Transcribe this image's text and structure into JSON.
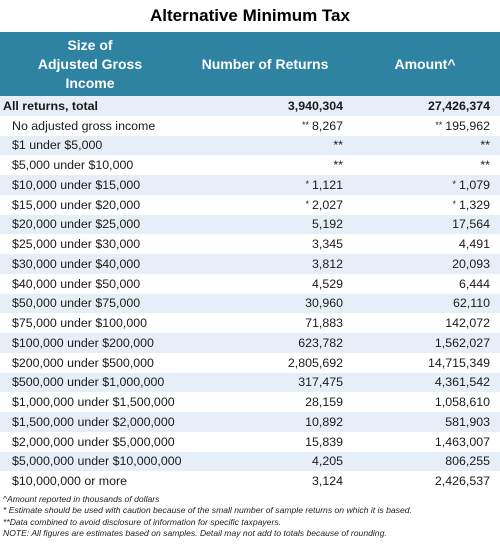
{
  "title": "Alternative Minimum Tax",
  "headers": {
    "size_line1": "Size of",
    "size_line2": "Adjusted Gross",
    "size_line3": "Income",
    "returns": "Number of Returns",
    "amount": "Amount^"
  },
  "rows": [
    {
      "label": "All returns, total",
      "returns_flag": "",
      "returns": "3,940,304",
      "amount_flag": "",
      "amount": "27,426,374"
    },
    {
      "label": "No adjusted gross income",
      "returns_flag": "**",
      "returns": "8,267",
      "amount_flag": "**",
      "amount": "195,962"
    },
    {
      "label": "$1 under $5,000",
      "returns_flag": "",
      "returns": "**",
      "amount_flag": "",
      "amount": "**"
    },
    {
      "label": "$5,000 under $10,000",
      "returns_flag": "",
      "returns": "**",
      "amount_flag": "",
      "amount": "**"
    },
    {
      "label": "$10,000 under $15,000",
      "returns_flag": "*",
      "returns": "1,121",
      "amount_flag": "*",
      "amount": "1,079"
    },
    {
      "label": "$15,000 under $20,000",
      "returns_flag": "*",
      "returns": "2,027",
      "amount_flag": "*",
      "amount": "1,329"
    },
    {
      "label": "$20,000 under $25,000",
      "returns_flag": "",
      "returns": "5,192",
      "amount_flag": "",
      "amount": "17,564"
    },
    {
      "label": "$25,000 under $30,000",
      "returns_flag": "",
      "returns": "3,345",
      "amount_flag": "",
      "amount": "4,491"
    },
    {
      "label": "$30,000 under $40,000",
      "returns_flag": "",
      "returns": "3,812",
      "amount_flag": "",
      "amount": "20,093"
    },
    {
      "label": "$40,000 under $50,000",
      "returns_flag": "",
      "returns": "4,529",
      "amount_flag": "",
      "amount": "6,444"
    },
    {
      "label": "$50,000 under $75,000",
      "returns_flag": "",
      "returns": "30,960",
      "amount_flag": "",
      "amount": "62,110"
    },
    {
      "label": "$75,000 under $100,000",
      "returns_flag": "",
      "returns": "71,883",
      "amount_flag": "",
      "amount": "142,072"
    },
    {
      "label": "$100,000 under $200,000",
      "returns_flag": "",
      "returns": "623,782",
      "amount_flag": "",
      "amount": "1,562,027"
    },
    {
      "label": "$200,000 under $500,000",
      "returns_flag": "",
      "returns": "2,805,692",
      "amount_flag": "",
      "amount": "14,715,349"
    },
    {
      "label": "$500,000 under $1,000,000",
      "returns_flag": "",
      "returns": "317,475",
      "amount_flag": "",
      "amount": "4,361,542"
    },
    {
      "label": "$1,000,000 under $1,500,000",
      "returns_flag": "",
      "returns": "28,159",
      "amount_flag": "",
      "amount": "1,058,610"
    },
    {
      "label": "$1,500,000 under $2,000,000",
      "returns_flag": "",
      "returns": "10,892",
      "amount_flag": "",
      "amount": "581,903"
    },
    {
      "label": "$2,000,000 under $5,000,000",
      "returns_flag": "",
      "returns": "15,839",
      "amount_flag": "",
      "amount": "1,463,007"
    },
    {
      "label": "$5,000,000 under $10,000,000",
      "returns_flag": "",
      "returns": "4,205",
      "amount_flag": "",
      "amount": "806,255"
    },
    {
      "label": "$10,000,000 or more",
      "returns_flag": "",
      "returns": "3,124",
      "amount_flag": "",
      "amount": "2,426,537"
    }
  ],
  "notes": [
    "^Amount reported in thousands of dollars",
    "* Estimate should be used with caution because of the small number of sample returns on which it is based.",
    "**Data combined to avoid disclosure of information for specific taxpayers.",
    "NOTE: All figures are estimates based on samples. Detail may not add to totals because of rounding."
  ],
  "colors": {
    "header_bg": "#2e83a3",
    "stripe": "#e6eff8"
  }
}
